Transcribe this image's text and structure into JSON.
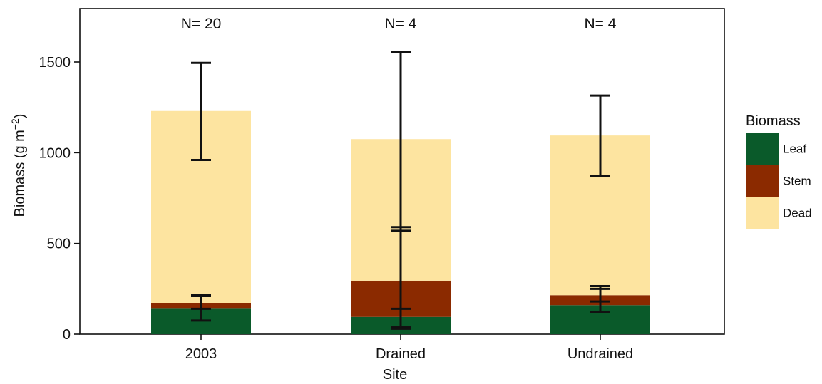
{
  "chart_data": {
    "type": "bar",
    "stacked": true,
    "categories": [
      "2003",
      "Drained",
      "Undrained"
    ],
    "series": [
      {
        "name": "Leaf",
        "color": "#0a5a2a",
        "values": [
          140,
          95,
          160
        ],
        "error_bars": [
          [
            75,
            210
          ],
          [
            40,
            140
          ],
          [
            120,
            250
          ]
        ]
      },
      {
        "name": "Stem",
        "color": "#8b2a00",
        "values": [
          30,
          200,
          55
        ],
        "error_bars": [
          [
            140,
            215
          ],
          [
            30,
            590
          ],
          [
            180,
            265
          ]
        ]
      },
      {
        "name": "Dead",
        "color": "#fde4a0",
        "values": [
          1060,
          780,
          880
        ],
        "error_bars": [
          [
            960,
            1495
          ],
          [
            570,
            1555
          ],
          [
            870,
            1315
          ]
        ]
      }
    ],
    "annotations": [
      "N= 20",
      "N= 4",
      "N= 4"
    ],
    "xlabel": "Site",
    "ylabel": "Biomass (g m",
    "ylabel_superscript": "−2",
    "ylabel_suffix": ")",
    "ylim": [
      0,
      1800
    ],
    "yticks": [
      0,
      500,
      1000,
      1500
    ],
    "legend": {
      "title": "Biomass",
      "position": "right"
    },
    "grid": false
  }
}
